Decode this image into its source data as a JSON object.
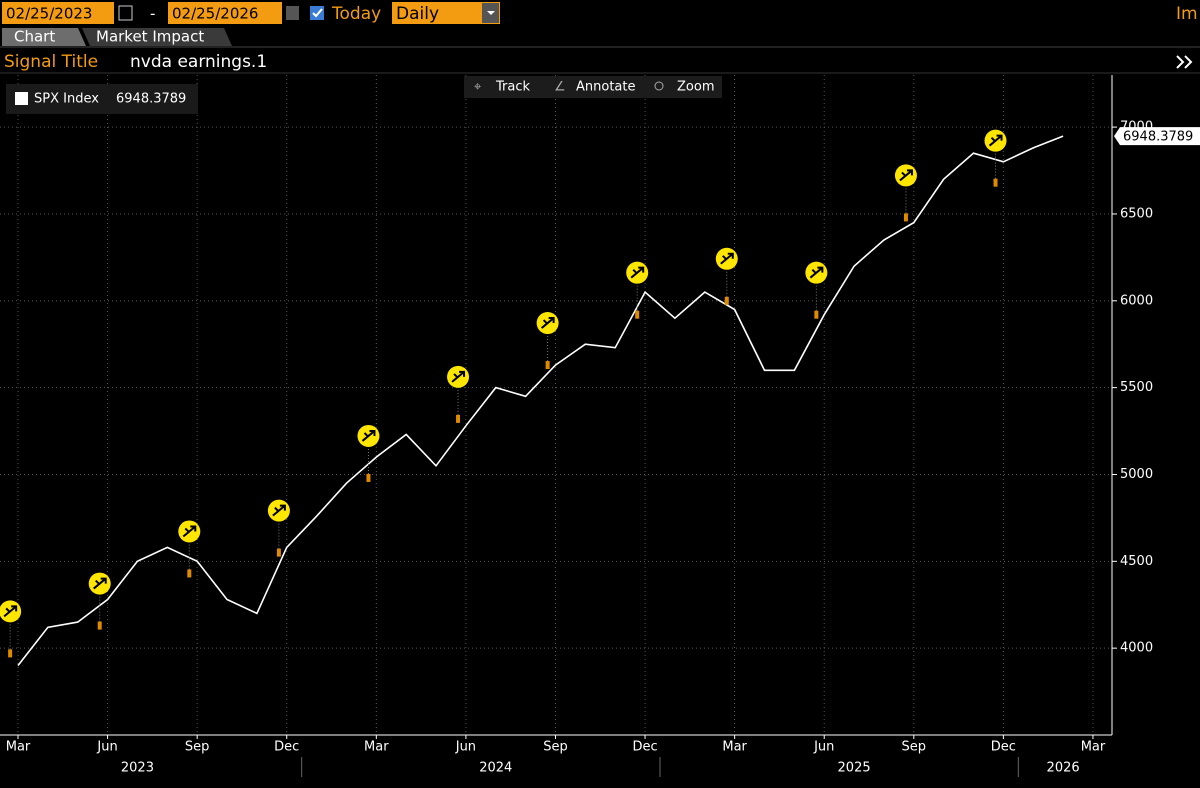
{
  "toolbar": {
    "start_date": "02/25/2023",
    "separator": "-",
    "end_date": "02/25/2026",
    "today": "Today",
    "frequency": "Daily",
    "right_label": "Im"
  },
  "tabs": [
    "Chart",
    "Market Impact"
  ],
  "signal": {
    "label": "Signal Title",
    "value": "nvda earnings.1"
  },
  "tools": [
    "Track",
    "Annotate",
    "Zoom"
  ],
  "chart_data": {
    "type": "line",
    "x": [
      "2023-03",
      "2023-04",
      "2023-05",
      "2023-06",
      "2023-07",
      "2023-08",
      "2023-09",
      "2023-10",
      "2023-11",
      "2023-12",
      "2024-01",
      "2024-02",
      "2024-03",
      "2024-04",
      "2024-05",
      "2024-06",
      "2024-07",
      "2024-08",
      "2024-09",
      "2024-10",
      "2024-11",
      "2024-12",
      "2025-01",
      "2025-02",
      "2025-03",
      "2025-04",
      "2025-05",
      "2025-06",
      "2025-07",
      "2025-08",
      "2025-09",
      "2025-10",
      "2025-11",
      "2025-12",
      "2026-01",
      "2026-02"
    ],
    "series": [
      {
        "name": "SPX Index",
        "color": "#ffffff",
        "values": [
          3900,
          4120,
          4150,
          4280,
          4500,
          4580,
          4500,
          4280,
          4200,
          4580,
          4760,
          4950,
          5100,
          5230,
          5050,
          5280,
          5500,
          5450,
          5630,
          5750,
          5730,
          6050,
          5900,
          6050,
          5950,
          5600,
          5600,
          5920,
          6200,
          6350,
          6450,
          6700,
          6850,
          6800,
          6880,
          6948.3789
        ]
      }
    ],
    "events": {
      "color": "#ffe600",
      "x": [
        "2023-02",
        "2023-05",
        "2023-08",
        "2023-11",
        "2024-02",
        "2024-05",
        "2024-08",
        "2024-11",
        "2025-02",
        "2025-05",
        "2025-08",
        "2025-11"
      ],
      "values": [
        3970,
        4130,
        4430,
        4550,
        4980,
        5320,
        5630,
        5920,
        6000,
        5920,
        6480,
        6680
      ]
    },
    "ylim": [
      3500,
      7300
    ],
    "yticks": [
      4000,
      4500,
      5000,
      5500,
      6000,
      6500,
      7000
    ],
    "xticks": [
      {
        "value": "2023-03",
        "label": "Mar"
      },
      {
        "value": "2023-06",
        "label": "Jun"
      },
      {
        "value": "2023-09",
        "label": "Sep"
      },
      {
        "value": "2023-12",
        "label": "Dec"
      },
      {
        "value": "2024-03",
        "label": "Mar"
      },
      {
        "value": "2024-06",
        "label": "Jun"
      },
      {
        "value": "2024-09",
        "label": "Sep"
      },
      {
        "value": "2024-12",
        "label": "Dec"
      },
      {
        "value": "2025-03",
        "label": "Mar"
      },
      {
        "value": "2025-06",
        "label": "Jun"
      },
      {
        "value": "2025-09",
        "label": "Sep"
      },
      {
        "value": "2025-12",
        "label": "Dec"
      },
      {
        "value": "2026-03",
        "label": "Mar"
      }
    ],
    "years": [
      {
        "value": "2023-07",
        "label": "2023"
      },
      {
        "value": "2024-07",
        "label": "2024"
      },
      {
        "value": "2025-07",
        "label": "2025"
      },
      {
        "value": "2026-02",
        "label": "2026"
      }
    ],
    "grid": true
  }
}
